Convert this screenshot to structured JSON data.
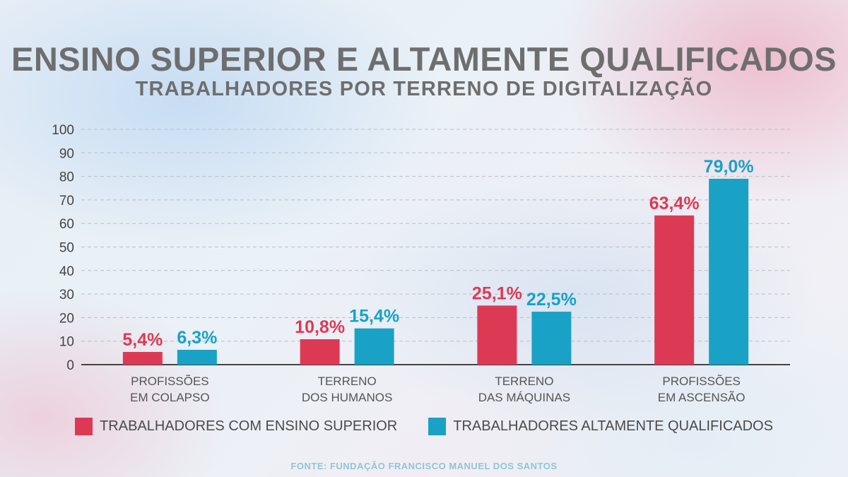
{
  "header": {
    "title": "ENSINO SUPERIOR E ALTAMENTE QUALIFICADOS",
    "subtitle": "TRABALHADORES POR TERRENO DE DIGITALIZAÇÃO"
  },
  "chart_data": {
    "type": "bar",
    "title": "ENSINO SUPERIOR E ALTAMENTE QUALIFICADOS",
    "subtitle": "TRABALHADORES POR TERRENO DE DIGITALIZAÇÃO",
    "categories": [
      [
        "PROFISSÕES",
        "EM COLAPSO"
      ],
      [
        "TERRENO",
        "DOS HUMANOS"
      ],
      [
        "TERRENO",
        "DAS MÁQUINAS"
      ],
      [
        "PROFISSÕES",
        "EM ASCENSÃO"
      ]
    ],
    "series": [
      {
        "name": "TRABALHADORES COM ENSINO SUPERIOR",
        "color": "#dc3a54",
        "values": [
          5.4,
          10.8,
          25.1,
          63.4
        ],
        "labels": [
          "5,4%",
          "10,8%",
          "25,1%",
          "63,4%"
        ]
      },
      {
        "name": "TRABALHADORES ALTAMENTE QUALIFICADOS",
        "color": "#19a2c5",
        "values": [
          6.3,
          15.4,
          22.5,
          79.0
        ],
        "labels": [
          "6,3%",
          "15,4%",
          "22,5%",
          "79,0%"
        ]
      }
    ],
    "yticks": [
      0,
      10,
      20,
      30,
      40,
      50,
      60,
      70,
      80,
      90,
      100
    ],
    "ylim": [
      0,
      100
    ],
    "grid": true,
    "legend_position": "bottom",
    "xlabel": "",
    "ylabel": ""
  },
  "source": "FONTE: FUNDAÇÃO FRANCISCO MANUEL DOS SANTOS"
}
